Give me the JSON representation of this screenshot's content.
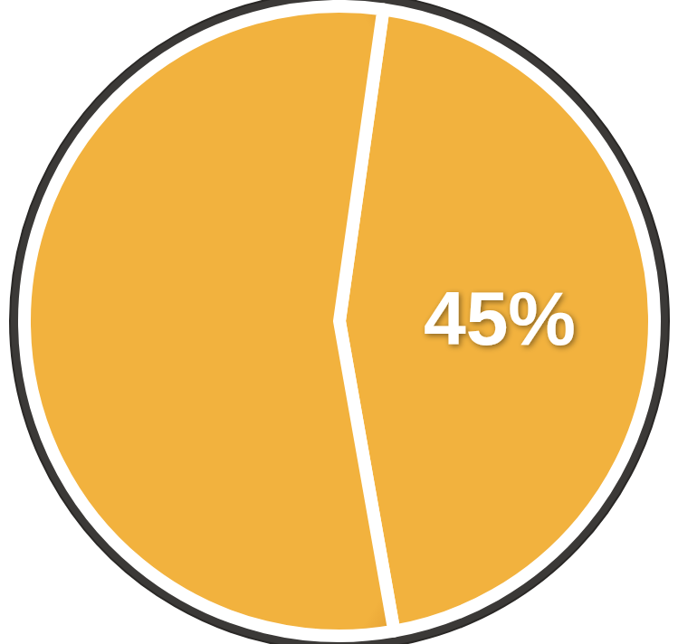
{
  "chart_data": {
    "type": "pie",
    "values": [
      45,
      55
    ],
    "value_labels": [
      "45%",
      null
    ],
    "data_labels": true,
    "colors": [
      "#f2b23e",
      "#f2b23e"
    ]
  }
}
